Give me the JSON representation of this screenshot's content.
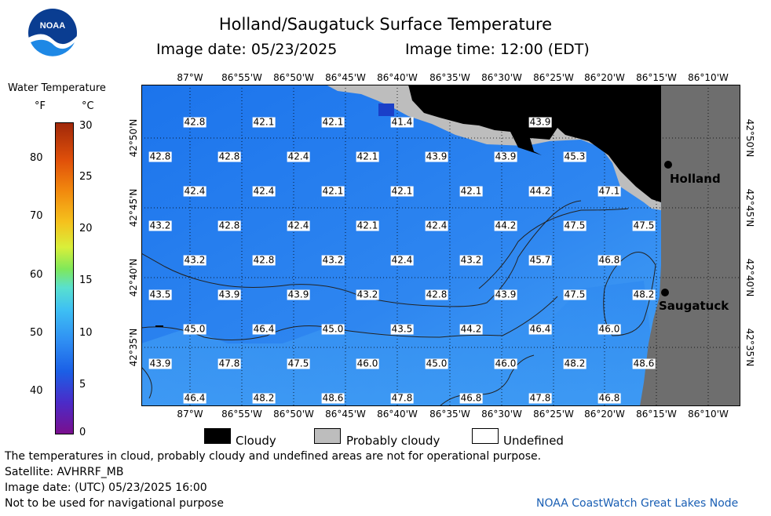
{
  "title": "Holland/Saugatuck Surface Temperature",
  "image_date": "Image date: 05/23/2025",
  "image_time": "Image time: 12:00 (EDT)",
  "colorbar": {
    "title": "Water Temperature",
    "unit_f": "°F",
    "unit_c": "°C",
    "f_ticks": [
      "80",
      "70",
      "60",
      "50",
      "40"
    ],
    "c_ticks": [
      "30",
      "25",
      "20",
      "15",
      "10",
      "5",
      "0"
    ]
  },
  "longitudes": [
    "87°W",
    "86°55'W",
    "86°50'W",
    "86°45'W",
    "86°40'W",
    "86°35'W",
    "86°30'W",
    "86°25'W",
    "86°20'W",
    "86°15'W",
    "86°10'W"
  ],
  "latitudes": [
    "42°50'N",
    "42°45'N",
    "42°40'N",
    "42°35'N"
  ],
  "cities": {
    "holland": "Holland",
    "saugatuck": "Saugatuck"
  },
  "temperatures": [
    [
      "42.8",
      "42.1",
      "42.1",
      "41.4",
      "43.9"
    ],
    [
      "42.8",
      "42.8",
      "42.4",
      "42.1",
      "43.9",
      "43.9",
      "45.3"
    ],
    [
      "42.4",
      "42.4",
      "42.1",
      "42.1",
      "42.1",
      "44.2",
      "47.1"
    ],
    [
      "43.2",
      "42.8",
      "42.4",
      "42.1",
      "42.4",
      "44.2",
      "47.5",
      "47.5"
    ],
    [
      "43.2",
      "42.8",
      "43.2",
      "42.4",
      "43.2",
      "45.7",
      "46.8"
    ],
    [
      "43.5",
      "43.9",
      "43.9",
      "43.2",
      "42.8",
      "43.9",
      "47.5",
      "48.2"
    ],
    [
      "45.0",
      "46.4",
      "45.0",
      "43.5",
      "44.2",
      "46.4",
      "46.0"
    ],
    [
      "43.9",
      "47.8",
      "47.5",
      "46.0",
      "45.0",
      "46.0",
      "48.2",
      "48.6"
    ],
    [
      "46.4",
      "48.2",
      "48.6",
      "47.8",
      "46.8",
      "47.8",
      "46.8"
    ]
  ],
  "legend": {
    "cloudy": "Cloudy",
    "probably_cloudy": "Probably cloudy",
    "undefined": "Undefined"
  },
  "notes": {
    "disclaimer": "The temperatures in cloud, probably cloudy and undefined areas are not for operational purpose.",
    "satellite": "Satellite: AVHRRF_MB",
    "utc_date": "Image date: (UTC) 05/23/2025  16:00",
    "navigation": "Not to be used for navigational purpose",
    "credit": "NOAA CoastWatch Great Lakes Node"
  },
  "logo_text": "NOAA",
  "colors": {
    "water_dark": "#1a6fe8",
    "water_light": "#3b9cf5",
    "land": "#6e6e6e",
    "cloud": "#000000",
    "probably_cloudy": "#bdbdbd"
  }
}
